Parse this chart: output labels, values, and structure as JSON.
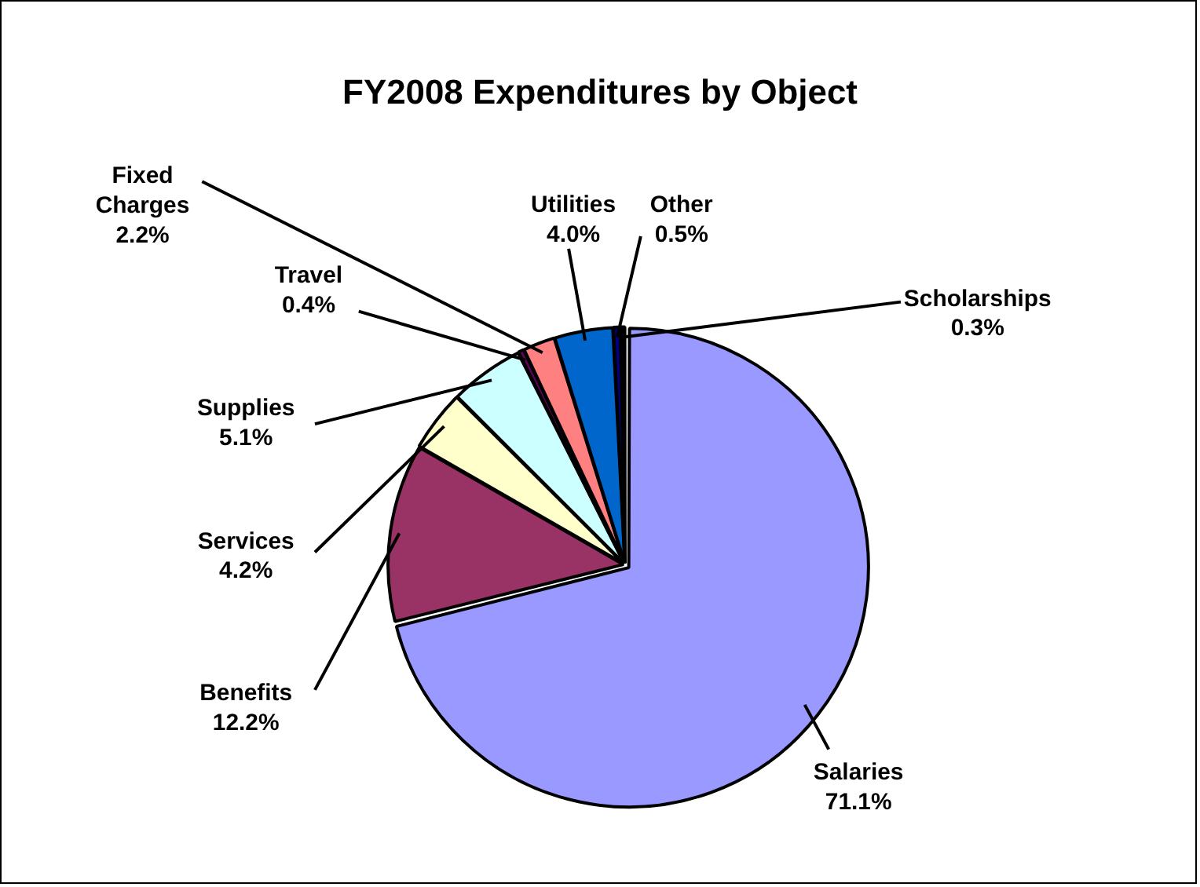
{
  "chart_data": {
    "type": "pie",
    "title": "FY2008 Expenditures by Object",
    "categories": [
      "Salaries",
      "Benefits",
      "Services",
      "Supplies",
      "Travel",
      "Fixed Charges",
      "Utilities",
      "Other",
      "Scholarships"
    ],
    "values": [
      71.1,
      12.2,
      4.2,
      5.1,
      0.4,
      2.2,
      4.0,
      0.5,
      0.3
    ],
    "colors": [
      "#9999ff",
      "#993366",
      "#ffffcc",
      "#ccffff",
      "#660066",
      "#ff8080",
      "#0066cc",
      "#000080",
      "#000000"
    ],
    "value_labels": [
      "71.1%",
      "12.2%",
      "4.2%",
      "5.1%",
      "0.4%",
      "2.2%",
      "4.0%",
      "0.5%",
      "0.3%"
    ],
    "legend": false
  }
}
